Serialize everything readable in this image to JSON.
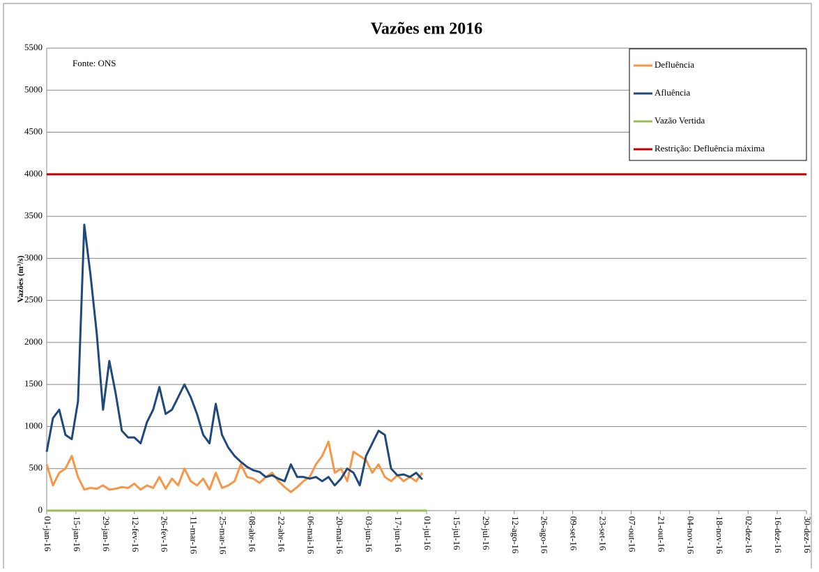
{
  "chart_data": {
    "type": "line",
    "title": "Vazões em 2016",
    "ylabel": "Vazões (m³/s)",
    "annotation": "Fonte: ONS",
    "ylim": [
      0,
      5500
    ],
    "yticks": [
      0,
      500,
      1000,
      1500,
      2000,
      2500,
      3000,
      3500,
      4000,
      4500,
      5000,
      5500
    ],
    "xlim": [
      0,
      364
    ],
    "xticks": [
      {
        "value": 0,
        "label": "01-jan-16"
      },
      {
        "value": 14,
        "label": "15-jan-16"
      },
      {
        "value": 28,
        "label": "29-jan-16"
      },
      {
        "value": 42,
        "label": "12-fev-16"
      },
      {
        "value": 56,
        "label": "26-fev-16"
      },
      {
        "value": 70,
        "label": "11-mar-16"
      },
      {
        "value": 84,
        "label": "25-mar-16"
      },
      {
        "value": 98,
        "label": "08-abr-16"
      },
      {
        "value": 112,
        "label": "22-abr-16"
      },
      {
        "value": 126,
        "label": "06-mai-16"
      },
      {
        "value": 140,
        "label": "20-mai-16"
      },
      {
        "value": 154,
        "label": "03-jun-16"
      },
      {
        "value": 168,
        "label": "17-jun-16"
      },
      {
        "value": 182,
        "label": "01-jul-16"
      },
      {
        "value": 196,
        "label": "15-jul-16"
      },
      {
        "value": 210,
        "label": "29-jul-16"
      },
      {
        "value": 224,
        "label": "12-ago-16"
      },
      {
        "value": 238,
        "label": "26-ago-16"
      },
      {
        "value": 252,
        "label": "09-set-16"
      },
      {
        "value": 266,
        "label": "23-set-16"
      },
      {
        "value": 280,
        "label": "07-out-16"
      },
      {
        "value": 294,
        "label": "21-out-16"
      },
      {
        "value": 308,
        "label": "04-nov-16"
      },
      {
        "value": 322,
        "label": "18-nov-16"
      },
      {
        "value": 336,
        "label": "02-dez-16"
      },
      {
        "value": 350,
        "label": "16-dez-16"
      },
      {
        "value": 364,
        "label": "30-dez-16"
      }
    ],
    "grid": true,
    "legend": "upper right",
    "series": [
      {
        "name": "Defluência",
        "color": "#f79646",
        "x": [
          0,
          3,
          6,
          9,
          12,
          15,
          18,
          21,
          24,
          27,
          30,
          33,
          36,
          39,
          42,
          45,
          48,
          51,
          54,
          57,
          60,
          63,
          66,
          69,
          72,
          75,
          78,
          81,
          84,
          87,
          90,
          93,
          96,
          99,
          102,
          105,
          108,
          111,
          114,
          117,
          120,
          123,
          126,
          129,
          132,
          135,
          138,
          141,
          144,
          147,
          150,
          153,
          156,
          159,
          162,
          165,
          168,
          171,
          174,
          177,
          180
        ],
        "values": [
          550,
          300,
          450,
          500,
          650,
          400,
          250,
          270,
          260,
          300,
          250,
          260,
          280,
          270,
          320,
          250,
          300,
          270,
          400,
          260,
          380,
          300,
          500,
          350,
          300,
          380,
          250,
          450,
          270,
          300,
          350,
          550,
          400,
          380,
          330,
          400,
          450,
          350,
          280,
          220,
          280,
          350,
          400,
          550,
          650,
          820,
          450,
          500,
          350,
          700,
          650,
          600,
          450,
          550,
          400,
          350,
          420,
          350,
          400,
          350,
          450
        ]
      },
      {
        "name": "Afluência",
        "color": "#1f497d",
        "x": [
          0,
          3,
          6,
          9,
          12,
          15,
          18,
          21,
          24,
          27,
          30,
          33,
          36,
          39,
          42,
          45,
          48,
          51,
          54,
          57,
          60,
          63,
          66,
          69,
          72,
          75,
          78,
          81,
          84,
          87,
          90,
          93,
          96,
          99,
          102,
          105,
          108,
          111,
          114,
          117,
          120,
          123,
          126,
          129,
          132,
          135,
          138,
          141,
          144,
          147,
          150,
          153,
          156,
          159,
          162,
          165,
          168,
          171,
          174,
          177,
          180
        ],
        "values": [
          700,
          1100,
          1200,
          900,
          850,
          1300,
          3400,
          2800,
          2100,
          1200,
          1780,
          1400,
          950,
          870,
          870,
          800,
          1050,
          1200,
          1470,
          1150,
          1200,
          1350,
          1500,
          1350,
          1150,
          900,
          800,
          1270,
          900,
          750,
          650,
          580,
          520,
          480,
          460,
          400,
          420,
          380,
          350,
          550,
          400,
          400,
          380,
          400,
          350,
          400,
          300,
          380,
          500,
          450,
          300,
          650,
          800,
          950,
          900,
          500,
          420,
          430,
          400,
          450,
          370
        ]
      },
      {
        "name": "Vazão Vertida",
        "color": "#9bbb59",
        "x": [
          0,
          182
        ],
        "values": [
          0,
          0
        ]
      },
      {
        "name": "Restrição: Defluência máxima",
        "color": "#c00000",
        "x": [
          0,
          364
        ],
        "values": [
          4000,
          4000
        ]
      }
    ]
  }
}
